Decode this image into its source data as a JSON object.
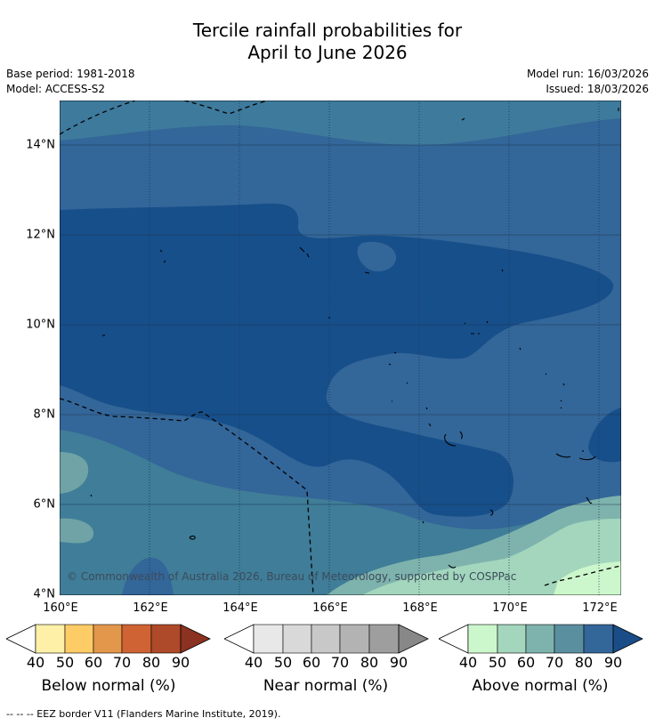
{
  "title_line1": "Tercile rainfall probabilities for",
  "title_line2": "April to June 2026",
  "base_period": "Base period: 1981-2018",
  "model": "Model: ACCESS-S2",
  "model_run": "Model run: 16/03/2026",
  "issued": "Issued: 18/03/2026",
  "y_labels": [
    "14°N",
    "12°N",
    "10°N",
    "8°N",
    "6°N",
    "4°N"
  ],
  "x_labels": [
    "160°E",
    "162°E",
    "164°E",
    "166°E",
    "168°E",
    "170°E",
    "172°E"
  ],
  "copyright": "© Commonwealth of Australia 2026, Bureau of Meteorology, supported by COSPPac",
  "legends": [
    {
      "title": "Below normal (%)",
      "ticks": [
        "40",
        "50",
        "60",
        "70",
        "80",
        "90"
      ],
      "colors": [
        "#fff0a8",
        "#fdcc66",
        "#e3974a",
        "#cf6333",
        "#ae4a29",
        "#8c3220"
      ]
    },
    {
      "title": "Near normal (%)",
      "ticks": [
        "40",
        "50",
        "60",
        "70",
        "80",
        "90"
      ],
      "colors": [
        "#e8e8e8",
        "#d9d9d9",
        "#c8c8c8",
        "#b3b3b3",
        "#9e9e9e",
        "#888888"
      ]
    },
    {
      "title": "Above normal (%)",
      "ticks": [
        "40",
        "50",
        "60",
        "70",
        "80",
        "90"
      ],
      "colors": [
        "#ccf7cc",
        "#a3d6bd",
        "#7eb3ad",
        "#5a8fa0",
        "#336699",
        "#1a4d88"
      ]
    }
  ],
  "footer": "--  --  -- EEZ border V11 (Flanders Marine Institute, 2019)."
}
